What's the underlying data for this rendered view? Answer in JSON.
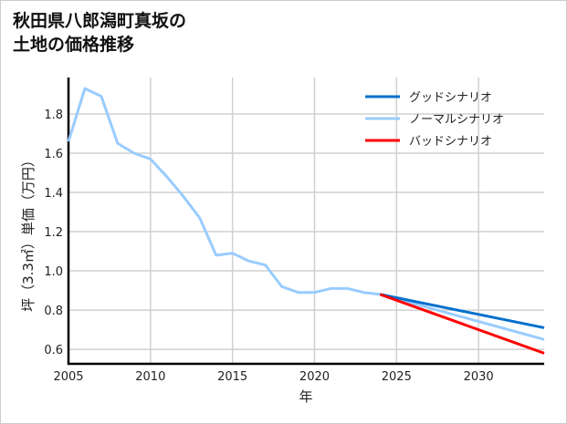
{
  "title_line1": "秋田県八郎潟町真坂の",
  "title_line2": "土地の価格推移",
  "chart_data": {
    "type": "line",
    "xlabel": "年",
    "ylabel": "坪（3.3㎡）単価（万円）",
    "xlim": [
      2005,
      2034
    ],
    "ylim": [
      0.526,
      1.986
    ],
    "xticks": [
      2005,
      2010,
      2015,
      2020,
      2025,
      2030
    ],
    "yticks": [
      0.6,
      0.8,
      1.0,
      1.2,
      1.4,
      1.6,
      1.8
    ],
    "grid": true,
    "legend_position": "top-right",
    "series": [
      {
        "name": "グッドシナリオ",
        "color": "#0070cc",
        "x": [
          2024,
          2034
        ],
        "y": [
          0.88,
          0.71
        ]
      },
      {
        "name": "ノーマルシナリオ",
        "color": "#99ccff",
        "x": [
          2005,
          2006,
          2007,
          2008,
          2009,
          2010,
          2011,
          2012,
          2013,
          2014,
          2015,
          2016,
          2017,
          2018,
          2019,
          2020,
          2021,
          2022,
          2023,
          2024,
          2034
        ],
        "y": [
          1.66,
          1.93,
          1.89,
          1.65,
          1.6,
          1.57,
          1.48,
          1.38,
          1.27,
          1.08,
          1.09,
          1.05,
          1.03,
          0.92,
          0.89,
          0.89,
          0.91,
          0.91,
          0.89,
          0.88,
          0.65
        ]
      },
      {
        "name": "バッドシナリオ",
        "color": "#ff0000",
        "x": [
          2024,
          2034
        ],
        "y": [
          0.88,
          0.58
        ]
      }
    ]
  }
}
